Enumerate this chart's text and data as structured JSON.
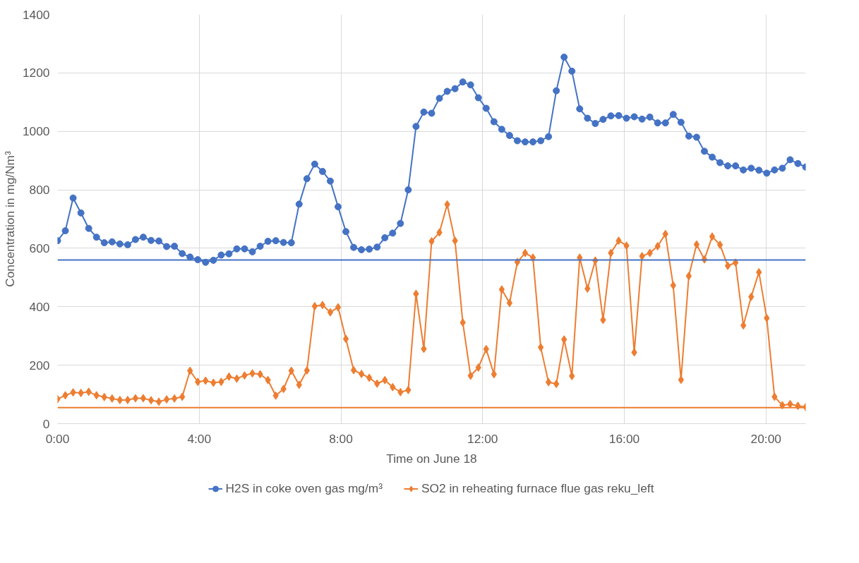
{
  "chart_data": {
    "type": "line",
    "xlabel": "Time on June 18",
    "ylabel": "Concentration in mg/Nm³",
    "x": [
      0,
      0.22,
      0.44,
      0.66,
      0.88,
      1.1,
      1.32,
      1.54,
      1.76,
      1.98,
      2.2,
      2.42,
      2.64,
      2.86,
      3.08,
      3.3,
      3.52,
      3.74,
      3.96,
      4.18,
      4.4,
      4.62,
      4.84,
      5.06,
      5.28,
      5.5,
      5.72,
      5.94,
      6.16,
      6.38,
      6.6,
      6.82,
      7.04,
      7.26,
      7.48,
      7.7,
      7.92,
      8.14,
      8.36,
      8.58,
      8.8,
      9.02,
      9.24,
      9.46,
      9.68,
      9.9,
      10.12,
      10.34,
      10.56,
      10.78,
      11,
      11.22,
      11.44,
      11.66,
      11.88,
      12.1,
      12.32,
      12.54,
      12.76,
      12.98,
      13.2,
      13.42,
      13.64,
      13.86,
      14.08,
      14.3,
      14.52,
      14.74,
      14.96,
      15.18,
      15.4,
      15.62,
      15.84,
      16.06,
      16.28,
      16.5,
      16.72,
      16.94,
      17.16,
      17.38,
      17.6,
      17.82,
      18.04,
      18.26,
      18.48,
      18.7,
      18.92,
      19.14,
      19.36,
      19.58,
      19.8,
      20.02,
      20.24,
      20.46,
      20.68,
      20.9,
      21.12
    ],
    "series": [
      {
        "name": "H2S in coke oven gas mg/m³",
        "color": "#4472c4",
        "marker": "circle",
        "values": [
          626,
          660,
          772,
          721,
          668,
          638,
          619,
          622,
          615,
          612,
          630,
          638,
          627,
          625,
          606,
          607,
          582,
          570,
          561,
          552,
          559,
          577,
          581,
          598,
          598,
          588,
          607,
          624,
          626,
          620,
          619,
          751,
          838,
          888,
          863,
          830,
          742,
          657,
          603,
          595,
          597,
          604,
          636,
          652,
          685,
          800,
          1017,
          1066,
          1062,
          1113,
          1137,
          1146,
          1169,
          1159,
          1115,
          1079,
          1033,
          1007,
          986,
          968,
          964,
          964,
          968,
          982,
          1139,
          1254,
          1206,
          1077,
          1045,
          1027,
          1041,
          1053,
          1054,
          1045,
          1050,
          1042,
          1049,
          1029,
          1029,
          1058,
          1031,
          984,
          980,
          932,
          912,
          893,
          882,
          882,
          868,
          874,
          867,
          857,
          868,
          874,
          903,
          890,
          878
        ]
      },
      {
        "name": "SO2 in reheating furnace flue gas reku_left",
        "color": "#ed7d31",
        "marker": "diamond",
        "values": [
          84,
          97,
          107,
          105,
          109,
          97,
          91,
          86,
          81,
          81,
          87,
          87,
          80,
          75,
          83,
          86,
          92,
          181,
          143,
          147,
          140,
          143,
          161,
          154,
          165,
          172,
          169,
          149,
          96,
          119,
          181,
          133,
          182,
          402,
          406,
          381,
          398,
          290,
          183,
          170,
          157,
          137,
          149,
          125,
          108,
          115,
          444,
          256,
          624,
          654,
          750,
          626,
          346,
          164,
          192,
          255,
          169,
          459,
          413,
          553,
          584,
          568,
          261,
          142,
          136,
          288,
          163,
          568,
          462,
          558,
          355,
          584,
          626,
          609,
          244,
          573,
          584,
          607,
          649,
          473,
          150,
          505,
          613,
          562,
          640,
          612,
          540,
          551,
          336,
          434,
          518,
          361,
          92,
          63,
          67,
          61,
          57
        ]
      }
    ],
    "ref_lines": [
      {
        "axis": "y",
        "value": 560,
        "color": "#4472c4"
      },
      {
        "axis": "y",
        "value": 55,
        "color": "#ed7d31"
      }
    ],
    "xlim": [
      0,
      21.12
    ],
    "xticks": [
      {
        "value": 0,
        "label": "0:00"
      },
      {
        "value": 4,
        "label": "4:00"
      },
      {
        "value": 8,
        "label": "8:00"
      },
      {
        "value": 12,
        "label": "12:00"
      },
      {
        "value": 16,
        "label": "16:00"
      },
      {
        "value": 20,
        "label": "20:00"
      }
    ],
    "ylim": [
      0,
      1400
    ],
    "yticks": [
      0,
      200,
      400,
      600,
      800,
      1000,
      1200,
      1400
    ],
    "grid": true,
    "legend": "bottom",
    "line_style": "solid"
  }
}
